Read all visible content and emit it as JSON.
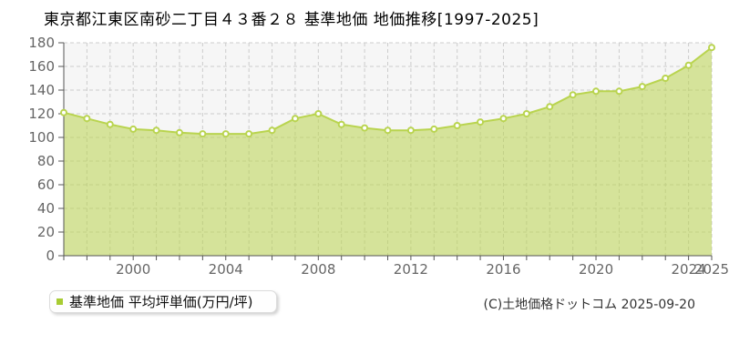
{
  "chart": {
    "title": "東京都江東区南砂二丁目４３番２８ 基準地価 地価推移[1997-2025]"
  },
  "legend": {
    "label": "基準地価 平均坪単価(万円/坪)",
    "marker_color": "#a8cc33"
  },
  "footer": {
    "copyright": "(C)土地価格ドットコム 2025-09-20"
  },
  "chart_data": {
    "type": "area",
    "title": "東京都江東区南砂二丁目４３番２８ 基準地価 地価推移[1997-2025]",
    "xlabel": "",
    "ylabel": "",
    "x": [
      1997,
      1998,
      1999,
      2000,
      2001,
      2002,
      2003,
      2004,
      2005,
      2006,
      2007,
      2008,
      2009,
      2010,
      2011,
      2012,
      2013,
      2014,
      2015,
      2016,
      2017,
      2018,
      2019,
      2020,
      2021,
      2022,
      2023,
      2024,
      2025
    ],
    "series": [
      {
        "name": "基準地価 平均坪単価(万円/坪)",
        "values": [
          121,
          116,
          111,
          107,
          106,
          104,
          103,
          103,
          103,
          106,
          116,
          120,
          111,
          108,
          106,
          106,
          107,
          110,
          113,
          116,
          120,
          126,
          136,
          139,
          139,
          143,
          150,
          161,
          176
        ]
      }
    ],
    "ylim": [
      0,
      180
    ],
    "ytick_step": 20,
    "xtick_labels": [
      "2000",
      "2004",
      "2008",
      "2012",
      "2016",
      "2020",
      "2024",
      "2025"
    ],
    "grid": true,
    "grid_style": "dashed",
    "legend_position": "bottom-left",
    "colors": {
      "line": "#b9d44f",
      "fill": "rgba(185,212,79,0.55)",
      "marker_fill": "#ffffff",
      "plot_bg": "#f6f6f6",
      "grid": "#cccccc",
      "axis": "#555555",
      "tick_label": "#666666"
    }
  }
}
